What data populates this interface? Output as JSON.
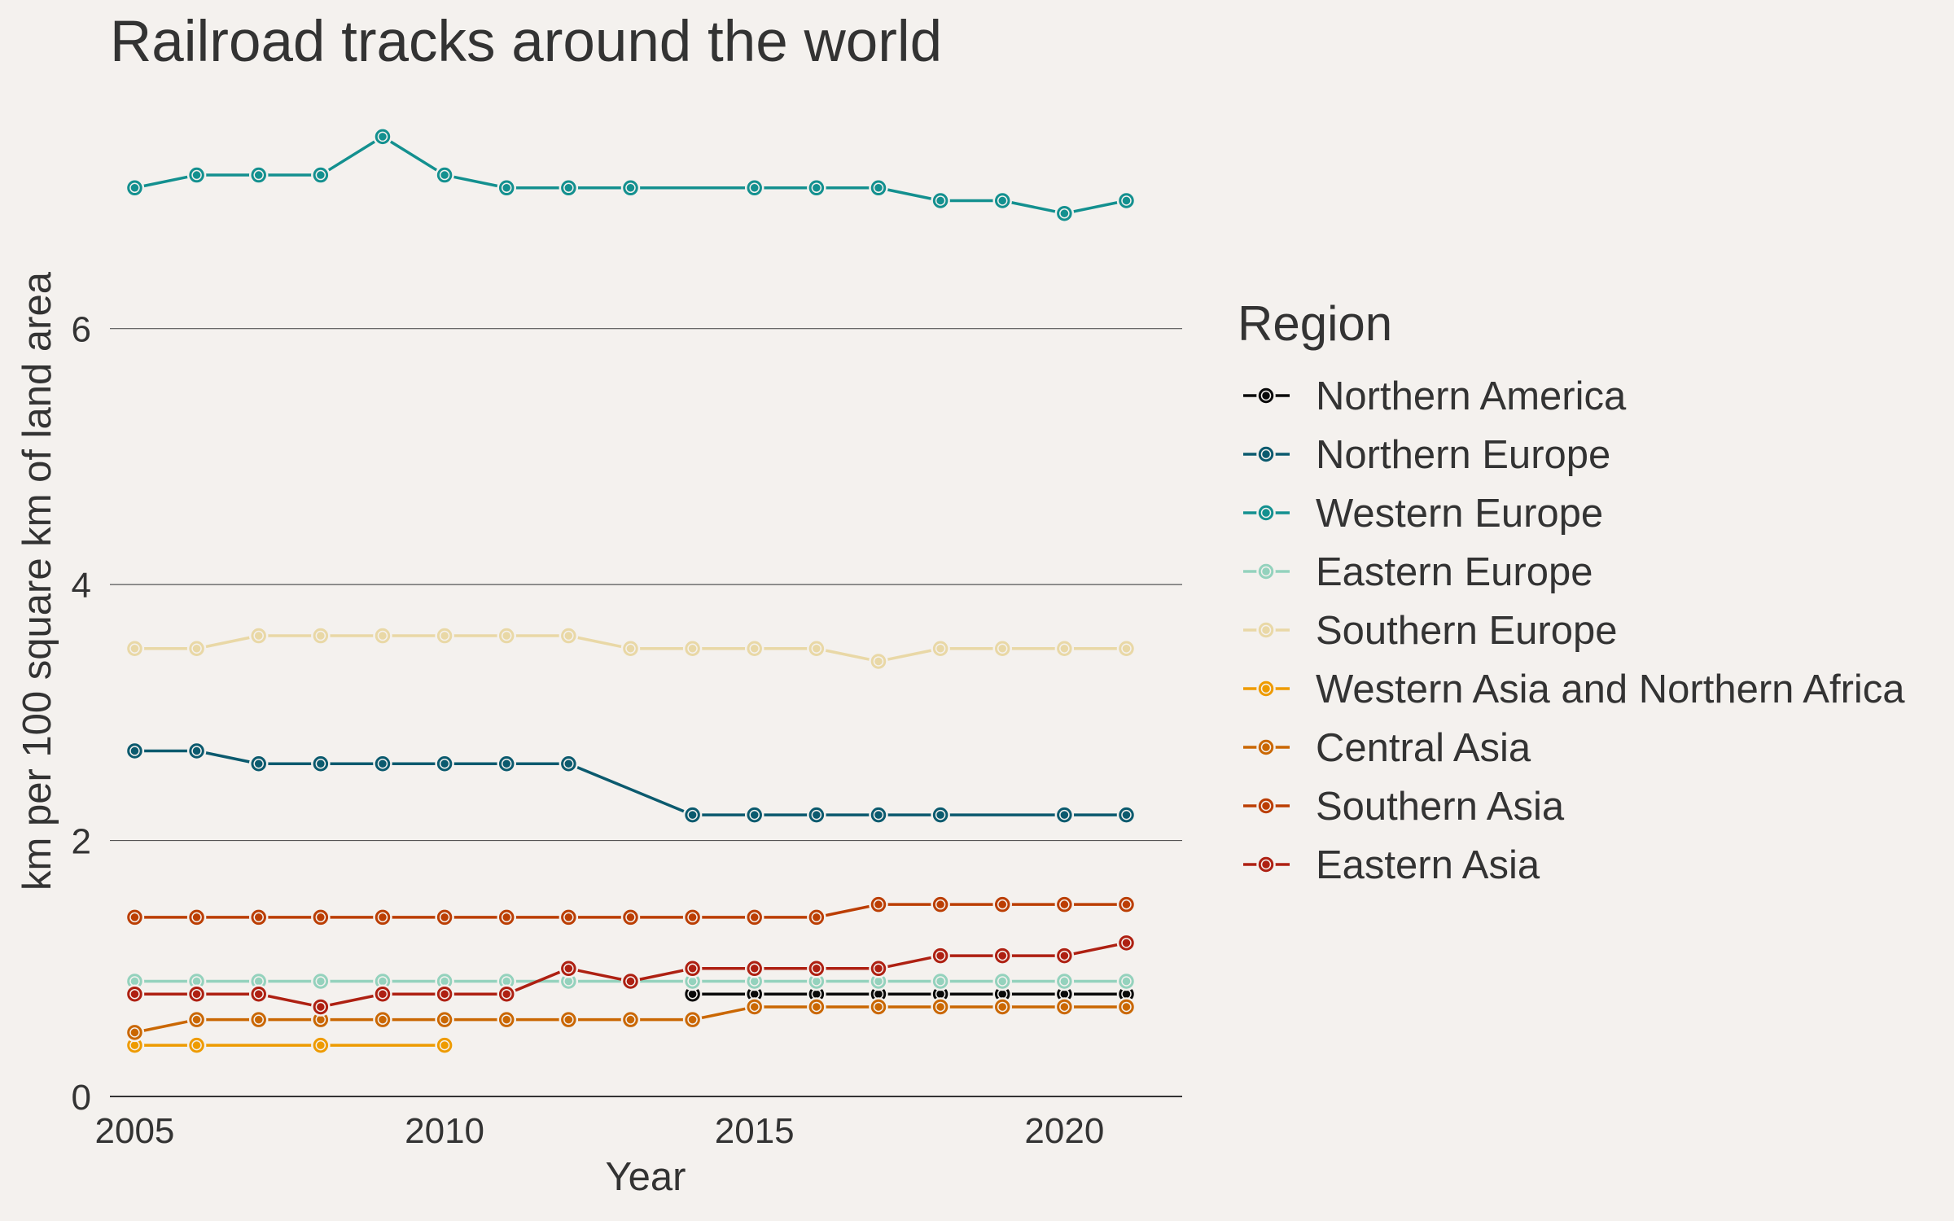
{
  "chart_data": {
    "type": "line",
    "title": "Railroad tracks around the world",
    "xlabel": "Year",
    "ylabel": "km per 100 square km of land area",
    "xlim": [
      2004.6,
      2021.9
    ],
    "ylim": [
      0,
      7.9
    ],
    "xticks": [
      2005,
      2010,
      2015,
      2020
    ],
    "yticks": [
      0,
      2,
      4,
      6
    ],
    "grid": "horizontal",
    "legend": {
      "title": "Region",
      "position": "right"
    },
    "series": [
      {
        "name": "Northern America",
        "color": "#0a0a0a",
        "points": [
          [
            2014,
            0.8
          ],
          [
            2015,
            0.8
          ],
          [
            2016,
            0.8
          ],
          [
            2017,
            0.8
          ],
          [
            2018,
            0.8
          ],
          [
            2019,
            0.8
          ],
          [
            2020,
            0.8
          ],
          [
            2021,
            0.8
          ]
        ]
      },
      {
        "name": "Northern Europe",
        "color": "#0b5a6e",
        "points": [
          [
            2005,
            2.7
          ],
          [
            2006,
            2.7
          ],
          [
            2007,
            2.6
          ],
          [
            2008,
            2.6
          ],
          [
            2009,
            2.6
          ],
          [
            2010,
            2.6
          ],
          [
            2011,
            2.6
          ],
          [
            2012,
            2.6
          ],
          [
            2014,
            2.2
          ],
          [
            2015,
            2.2
          ],
          [
            2016,
            2.2
          ],
          [
            2017,
            2.2
          ],
          [
            2018,
            2.2
          ],
          [
            2020,
            2.2
          ],
          [
            2021,
            2.2
          ]
        ]
      },
      {
        "name": "Western Europe",
        "color": "#13908f",
        "points": [
          [
            2005,
            7.1
          ],
          [
            2006,
            7.2
          ],
          [
            2007,
            7.2
          ],
          [
            2008,
            7.2
          ],
          [
            2009,
            7.5
          ],
          [
            2010,
            7.2
          ],
          [
            2011,
            7.1
          ],
          [
            2012,
            7.1
          ],
          [
            2013,
            7.1
          ],
          [
            2015,
            7.1
          ],
          [
            2016,
            7.1
          ],
          [
            2017,
            7.1
          ],
          [
            2018,
            7.0
          ],
          [
            2019,
            7.0
          ],
          [
            2020,
            6.9
          ],
          [
            2021,
            7.0
          ]
        ]
      },
      {
        "name": "Eastern Europe",
        "color": "#94d2bd",
        "points": [
          [
            2005,
            0.9
          ],
          [
            2006,
            0.9
          ],
          [
            2007,
            0.9
          ],
          [
            2008,
            0.9
          ],
          [
            2009,
            0.9
          ],
          [
            2010,
            0.9
          ],
          [
            2011,
            0.9
          ],
          [
            2012,
            0.9
          ],
          [
            2013,
            0.9
          ],
          [
            2014,
            0.9
          ],
          [
            2015,
            0.9
          ],
          [
            2016,
            0.9
          ],
          [
            2017,
            0.9
          ],
          [
            2018,
            0.9
          ],
          [
            2019,
            0.9
          ],
          [
            2020,
            0.9
          ],
          [
            2021,
            0.9
          ]
        ]
      },
      {
        "name": "Southern Europe",
        "color": "#e9d8a6",
        "points": [
          [
            2005,
            3.5
          ],
          [
            2006,
            3.5
          ],
          [
            2007,
            3.6
          ],
          [
            2008,
            3.6
          ],
          [
            2009,
            3.6
          ],
          [
            2010,
            3.6
          ],
          [
            2011,
            3.6
          ],
          [
            2012,
            3.6
          ],
          [
            2013,
            3.5
          ],
          [
            2014,
            3.5
          ],
          [
            2015,
            3.5
          ],
          [
            2016,
            3.5
          ],
          [
            2017,
            3.4
          ],
          [
            2018,
            3.5
          ],
          [
            2019,
            3.5
          ],
          [
            2020,
            3.5
          ],
          [
            2021,
            3.5
          ]
        ]
      },
      {
        "name": "Western Asia and Northern Africa",
        "color": "#ee9b00",
        "points": [
          [
            2005,
            0.4
          ],
          [
            2006,
            0.4
          ],
          [
            2008,
            0.4
          ],
          [
            2010,
            0.4
          ]
        ]
      },
      {
        "name": "Central Asia",
        "color": "#ca6702",
        "points": [
          [
            2005,
            0.5
          ],
          [
            2006,
            0.6
          ],
          [
            2007,
            0.6
          ],
          [
            2008,
            0.6
          ],
          [
            2009,
            0.6
          ],
          [
            2010,
            0.6
          ],
          [
            2011,
            0.6
          ],
          [
            2012,
            0.6
          ],
          [
            2013,
            0.6
          ],
          [
            2014,
            0.6
          ],
          [
            2015,
            0.7
          ],
          [
            2016,
            0.7
          ],
          [
            2017,
            0.7
          ],
          [
            2018,
            0.7
          ],
          [
            2019,
            0.7
          ],
          [
            2020,
            0.7
          ],
          [
            2021,
            0.7
          ]
        ]
      },
      {
        "name": "Southern Asia",
        "color": "#bb3e03",
        "points": [
          [
            2005,
            1.4
          ],
          [
            2006,
            1.4
          ],
          [
            2007,
            1.4
          ],
          [
            2008,
            1.4
          ],
          [
            2009,
            1.4
          ],
          [
            2010,
            1.4
          ],
          [
            2011,
            1.4
          ],
          [
            2012,
            1.4
          ],
          [
            2013,
            1.4
          ],
          [
            2014,
            1.4
          ],
          [
            2015,
            1.4
          ],
          [
            2016,
            1.4
          ],
          [
            2017,
            1.5
          ],
          [
            2018,
            1.5
          ],
          [
            2019,
            1.5
          ],
          [
            2020,
            1.5
          ],
          [
            2021,
            1.5
          ]
        ]
      },
      {
        "name": "Eastern Asia",
        "color": "#ae2012",
        "points": [
          [
            2005,
            0.8
          ],
          [
            2006,
            0.8
          ],
          [
            2007,
            0.8
          ],
          [
            2008,
            0.7
          ],
          [
            2009,
            0.8
          ],
          [
            2010,
            0.8
          ],
          [
            2011,
            0.8
          ],
          [
            2012,
            1.0
          ],
          [
            2013,
            0.9
          ],
          [
            2014,
            1.0
          ],
          [
            2015,
            1.0
          ],
          [
            2016,
            1.0
          ],
          [
            2017,
            1.0
          ],
          [
            2018,
            1.1
          ],
          [
            2019,
            1.1
          ],
          [
            2020,
            1.1
          ],
          [
            2021,
            1.2
          ]
        ]
      }
    ]
  }
}
